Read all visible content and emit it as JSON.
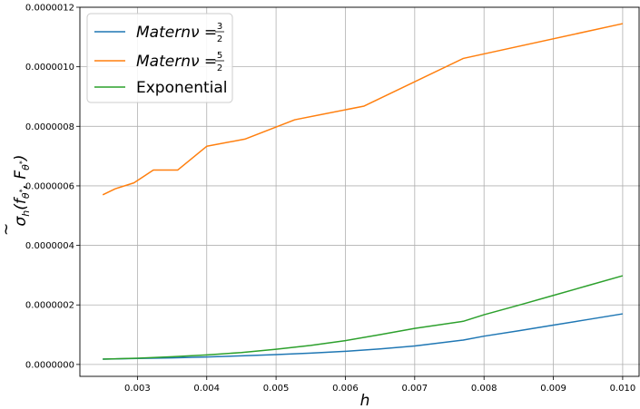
{
  "chart_data": {
    "type": "line",
    "xlabel": "h",
    "ylabel_parts": {
      "sigma": "σ",
      "sub_h": "h",
      "open": "(",
      "f": "f",
      "tilde": "~",
      "theta": "θ",
      "star": "*",
      "comma": ", ",
      "F": "F",
      "close": ")"
    },
    "xlim": [
      0.00217,
      0.01025
    ],
    "ylim": [
      -4e-08,
      1.2e-06
    ],
    "xticks": [
      {
        "value": 0.003,
        "label": "0.003"
      },
      {
        "value": 0.004,
        "label": "0.004"
      },
      {
        "value": 0.005,
        "label": "0.005"
      },
      {
        "value": 0.006,
        "label": "0.006"
      },
      {
        "value": 0.007,
        "label": "0.007"
      },
      {
        "value": 0.008,
        "label": "0.008"
      },
      {
        "value": 0.009,
        "label": "0.009"
      },
      {
        "value": 0.01,
        "label": "0.010"
      }
    ],
    "yticks": [
      {
        "value": 0.0,
        "label": "0.0000000"
      },
      {
        "value": 2e-07,
        "label": "0.0000002"
      },
      {
        "value": 4e-07,
        "label": "0.0000004"
      },
      {
        "value": 6e-07,
        "label": "0.0000006"
      },
      {
        "value": 8e-07,
        "label": "0.0000008"
      },
      {
        "value": 1e-06,
        "label": "0.0000010"
      },
      {
        "value": 1.2e-06,
        "label": "0.0000012"
      }
    ],
    "grid": true,
    "legend_position": "top-left",
    "series": [
      {
        "color": "#1f77b4",
        "legend": {
          "main": "Matern",
          "nu": "ν",
          "eq": " = ",
          "num": "3",
          "den": "2"
        },
        "x": [
          0.0025,
          0.003,
          0.0035,
          0.004,
          0.0045,
          0.005,
          0.0055,
          0.006,
          0.0065,
          0.007,
          0.0077,
          0.008,
          0.0085,
          0.009,
          0.0095,
          0.01
        ],
        "y": [
          1.8e-08,
          2e-08,
          2.2e-08,
          2.5e-08,
          2.9e-08,
          3.3e-08,
          3.8e-08,
          4.4e-08,
          5.2e-08,
          6.2e-08,
          8.2e-08,
          9.5e-08,
          1.13e-07,
          1.32e-07,
          1.51e-07,
          1.7e-07
        ]
      },
      {
        "color": "#ff7f0e",
        "legend": {
          "main": "Matern",
          "nu": "ν",
          "eq": " = ",
          "num": "5",
          "den": "2"
        },
        "x": [
          0.0025,
          0.00268,
          0.00295,
          0.00323,
          0.00358,
          0.004,
          0.00455,
          0.00527,
          0.00627,
          0.0077,
          0.01
        ],
        "y": [
          5.7e-07,
          5.9e-07,
          6.1e-07,
          6.53e-07,
          6.53e-07,
          7.33e-07,
          7.57e-07,
          8.22e-07,
          8.68e-07,
          1.028e-06,
          1.145e-06
        ]
      },
      {
        "color": "#2ca02c",
        "legend": {
          "main": "Exponential"
        },
        "x": [
          0.0025,
          0.003,
          0.0035,
          0.004,
          0.0045,
          0.005,
          0.0055,
          0.006,
          0.0065,
          0.007,
          0.0077,
          0.008,
          0.0085,
          0.009,
          0.0095,
          0.01
        ],
        "y": [
          1.8e-08,
          2.1e-08,
          2.6e-08,
          3.2e-08,
          4e-08,
          5.1e-08,
          6.4e-08,
          8e-08,
          1e-07,
          1.21e-07,
          1.45e-07,
          1.67e-07,
          1.99e-07,
          2.32e-07,
          2.65e-07,
          2.98e-07
        ]
      }
    ]
  }
}
